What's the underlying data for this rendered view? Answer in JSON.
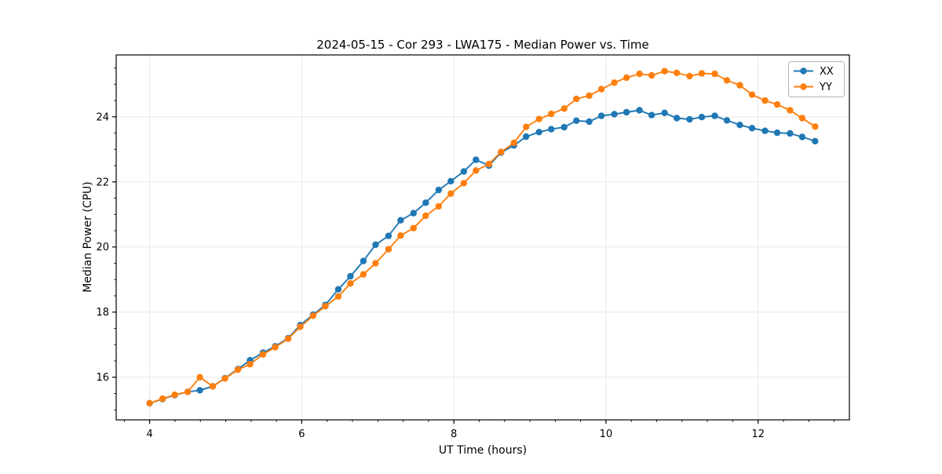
{
  "chart_data": {
    "type": "line",
    "title": "2024-05-15 - Cor 293 - LWA175 - Median Power vs. Time",
    "xlabel": "UT Time (hours)",
    "ylabel": "Median Power (CPU)",
    "xlim": [
      3.56,
      13.2
    ],
    "ylim": [
      14.69,
      25.9
    ],
    "xticks": [
      4,
      6,
      8,
      10,
      12
    ],
    "yticks": [
      16,
      18,
      20,
      22,
      24
    ],
    "minor_xtick_step": 0.33333,
    "minor_ytick_step": 0.5,
    "grid": "major",
    "grid_color": "#e8e8e8",
    "legend_position": "upper right",
    "x": [
      4.0,
      4.17,
      4.33,
      4.5,
      4.66,
      4.83,
      4.99,
      5.16,
      5.32,
      5.49,
      5.65,
      5.82,
      5.98,
      6.15,
      6.31,
      6.48,
      6.64,
      6.81,
      6.97,
      7.14,
      7.3,
      7.47,
      7.63,
      7.8,
      7.96,
      8.13,
      8.29,
      8.46,
      8.62,
      8.79,
      8.95,
      9.12,
      9.28,
      9.45,
      9.61,
      9.78,
      9.94,
      10.11,
      10.27,
      10.44,
      10.6,
      10.77,
      10.93,
      11.1,
      11.26,
      11.43,
      11.59,
      11.76,
      11.92,
      12.09,
      12.25,
      12.42,
      12.58,
      12.75
    ],
    "series": [
      {
        "name": "XX",
        "color": "#1f77b4",
        "marker": "circle",
        "values": [
          15.2,
          15.33,
          15.45,
          15.55,
          15.6,
          15.72,
          15.97,
          16.25,
          16.52,
          16.75,
          16.95,
          17.2,
          17.6,
          17.92,
          18.22,
          18.7,
          19.1,
          19.57,
          20.07,
          20.34,
          20.82,
          21.04,
          21.36,
          21.75,
          22.02,
          22.32,
          22.68,
          22.5,
          22.9,
          23.12,
          23.39,
          23.53,
          23.62,
          23.68,
          23.88,
          23.85,
          24.03,
          24.08,
          24.14,
          24.2,
          24.05,
          24.12,
          23.96,
          23.92,
          23.99,
          24.03,
          23.89,
          23.75,
          23.65,
          23.57,
          23.51,
          23.49,
          23.38,
          23.25
        ]
      },
      {
        "name": "YY",
        "color": "#ff7f0e",
        "marker": "circle",
        "values": [
          15.2,
          15.34,
          15.46,
          15.55,
          16.0,
          15.72,
          15.96,
          16.23,
          16.4,
          16.7,
          16.92,
          17.18,
          17.55,
          17.89,
          18.18,
          18.48,
          18.88,
          19.16,
          19.5,
          19.93,
          20.35,
          20.58,
          20.96,
          21.25,
          21.64,
          21.96,
          22.35,
          22.55,
          22.92,
          23.2,
          23.69,
          23.93,
          24.09,
          24.25,
          24.55,
          24.65,
          24.85,
          25.05,
          25.2,
          25.32,
          25.27,
          25.4,
          25.35,
          25.25,
          25.33,
          25.32,
          25.12,
          24.97,
          24.68,
          24.5,
          24.38,
          24.2,
          23.96,
          23.7
        ]
      }
    ]
  }
}
